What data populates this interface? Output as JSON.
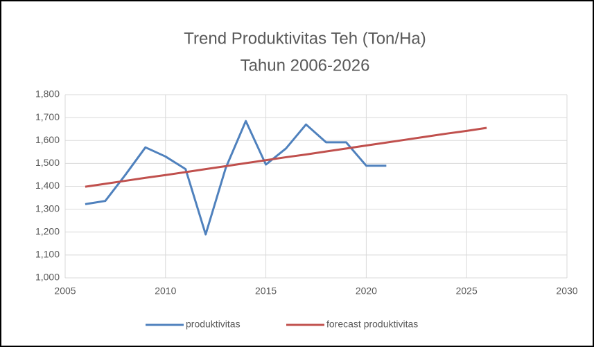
{
  "chart_data": {
    "type": "line",
    "title": "Trend Produktivitas Teh (Ton/Ha)",
    "subtitle": "Tahun 2006-2026",
    "series": [
      {
        "name": "produktivitas",
        "color": "#4f81bd",
        "x": [
          2006,
          2007,
          2008,
          2009,
          2010,
          2011,
          2012,
          2013,
          2014,
          2015,
          2016,
          2017,
          2018,
          2019,
          2020,
          2021
        ],
        "values": [
          1322,
          1336,
          1450,
          1570,
          1530,
          1475,
          1190,
          1480,
          1685,
          1495,
          1565,
          1670,
          1592,
          1592,
          1490,
          1490
        ]
      },
      {
        "name": "forecast produktivitas",
        "color": "#c0504d",
        "x": [
          2006,
          2007,
          2008,
          2009,
          2010,
          2011,
          2012,
          2013,
          2014,
          2015,
          2016,
          2017,
          2018,
          2019,
          2020,
          2021,
          2022,
          2023,
          2024,
          2025,
          2026
        ],
        "values": [
          1398,
          1411,
          1424,
          1437,
          1449,
          1462,
          1475,
          1488,
          1501,
          1514,
          1527,
          1539,
          1552,
          1565,
          1578,
          1591,
          1604,
          1617,
          1630,
          1642,
          1655
        ]
      }
    ],
    "xlim": [
      2005,
      2030
    ],
    "xticks": [
      2005,
      2010,
      2015,
      2020,
      2025,
      2030
    ],
    "ylim": [
      1000,
      1800
    ],
    "yticks": [
      {
        "value": 1000,
        "label": "1,000"
      },
      {
        "value": 1100,
        "label": "1,100"
      },
      {
        "value": 1200,
        "label": "1,200"
      },
      {
        "value": 1300,
        "label": "1,300"
      },
      {
        "value": 1400,
        "label": "1,400"
      },
      {
        "value": 1500,
        "label": "1,500"
      },
      {
        "value": 1600,
        "label": "1,600"
      },
      {
        "value": 1700,
        "label": "1,700"
      },
      {
        "value": 1800,
        "label": "1,800"
      }
    ],
    "grid": true,
    "legend": "bottom"
  }
}
